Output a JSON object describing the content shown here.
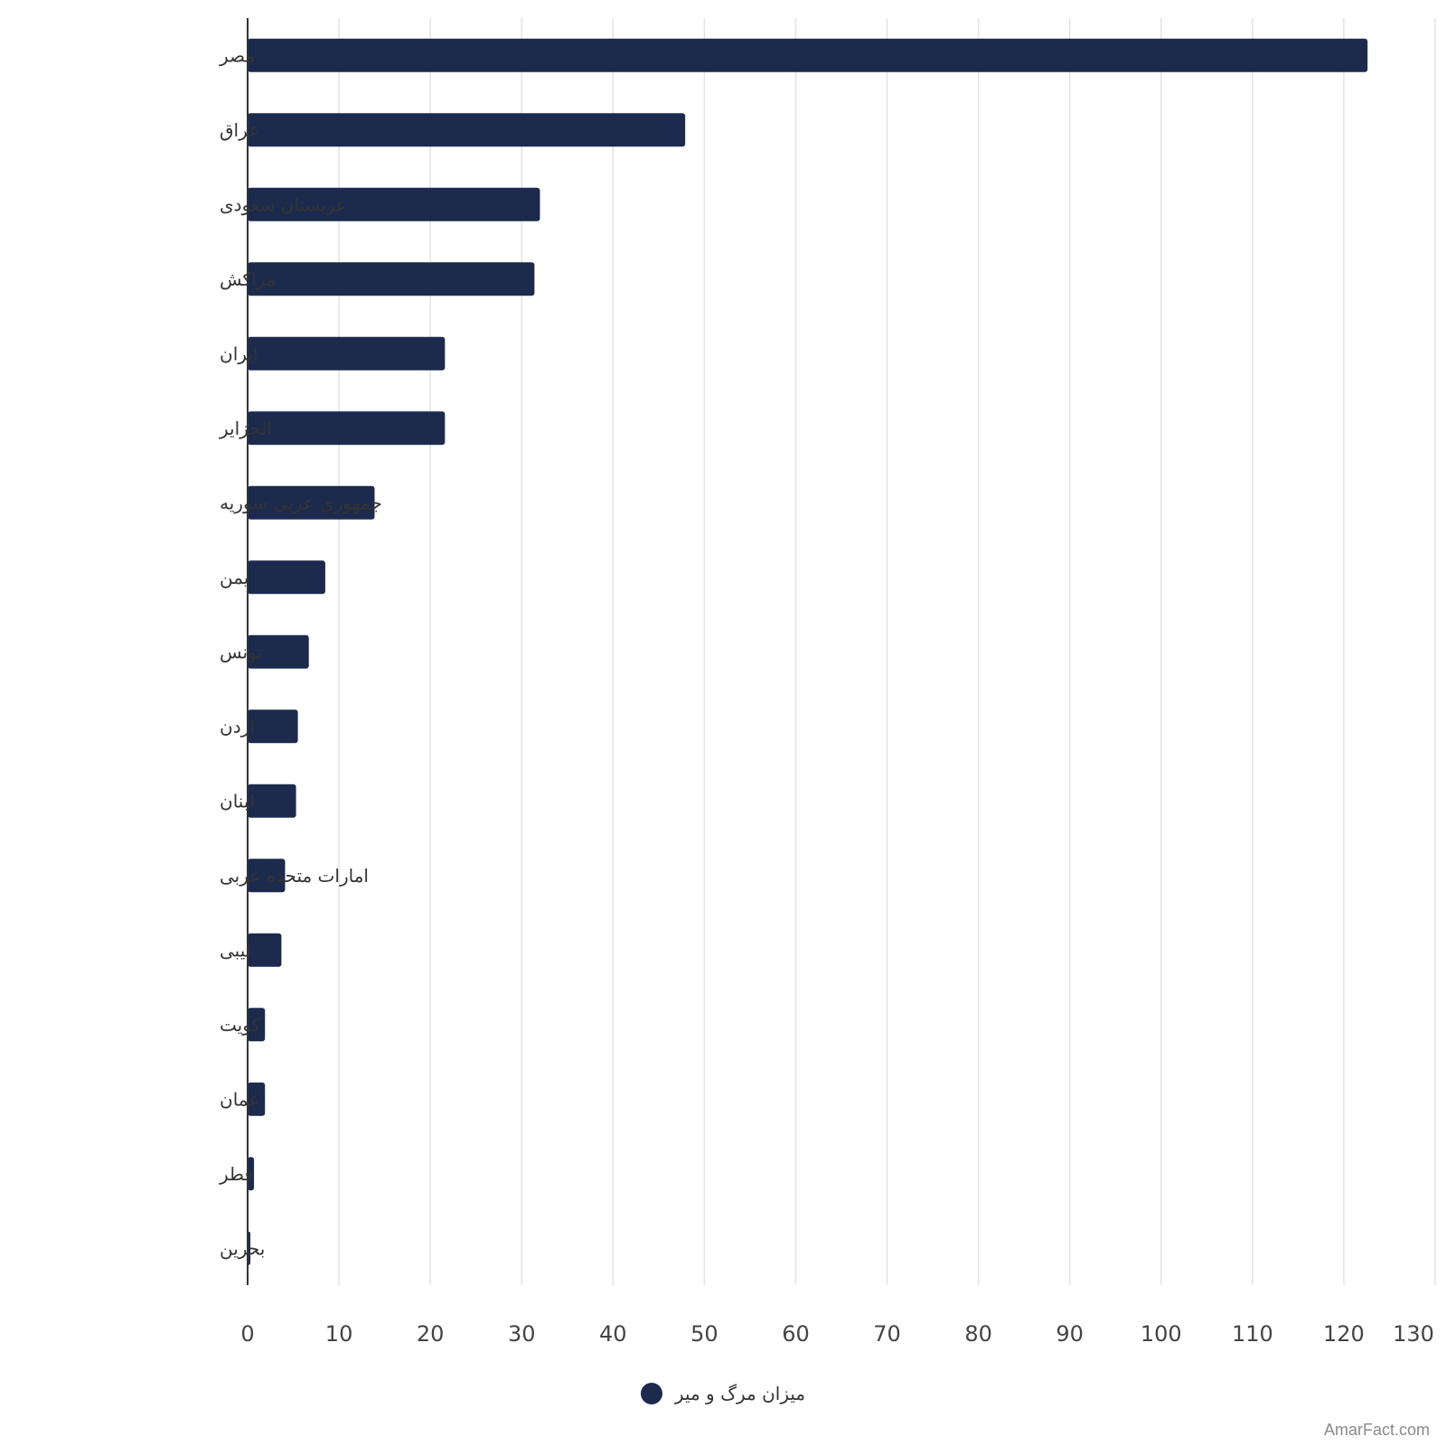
{
  "colors": {
    "bar": "#1c2a4d",
    "grid": "#e3e3e3",
    "axis": "#333333",
    "tick_text": "#444444",
    "category_text": "#333333"
  },
  "legend": {
    "label": "میزان مرگ و میر"
  },
  "source": {
    "text": "AmarFact.com"
  },
  "chart_data": {
    "type": "bar",
    "orientation": "horizontal",
    "categories": [
      "مصر",
      "عراق",
      "عربستان سعودی",
      "مراکش",
      "ایران",
      "الجزایر",
      "جمهوری عربی سوریه",
      "یمن",
      "تونس",
      "اردن",
      "لبنان",
      "امارات متحده عربی",
      "لیبی",
      "کویت",
      "عمان",
      "قطر",
      "بحرین"
    ],
    "series": [
      {
        "name": "میزان مرگ و میر",
        "values": [
          122.6,
          47.9,
          32,
          31.4,
          21.6,
          21.6,
          13.9,
          8.5,
          6.7,
          5.5,
          5.3,
          4.1,
          3.7,
          1.9,
          1.9,
          0.7,
          0.3
        ]
      }
    ],
    "xlim": [
      0,
      130
    ],
    "xticks": [
      0,
      10,
      20,
      30,
      40,
      50,
      60,
      70,
      80,
      90,
      100,
      110,
      120,
      130
    ],
    "grid": true,
    "legend_position": "bottom-center"
  }
}
